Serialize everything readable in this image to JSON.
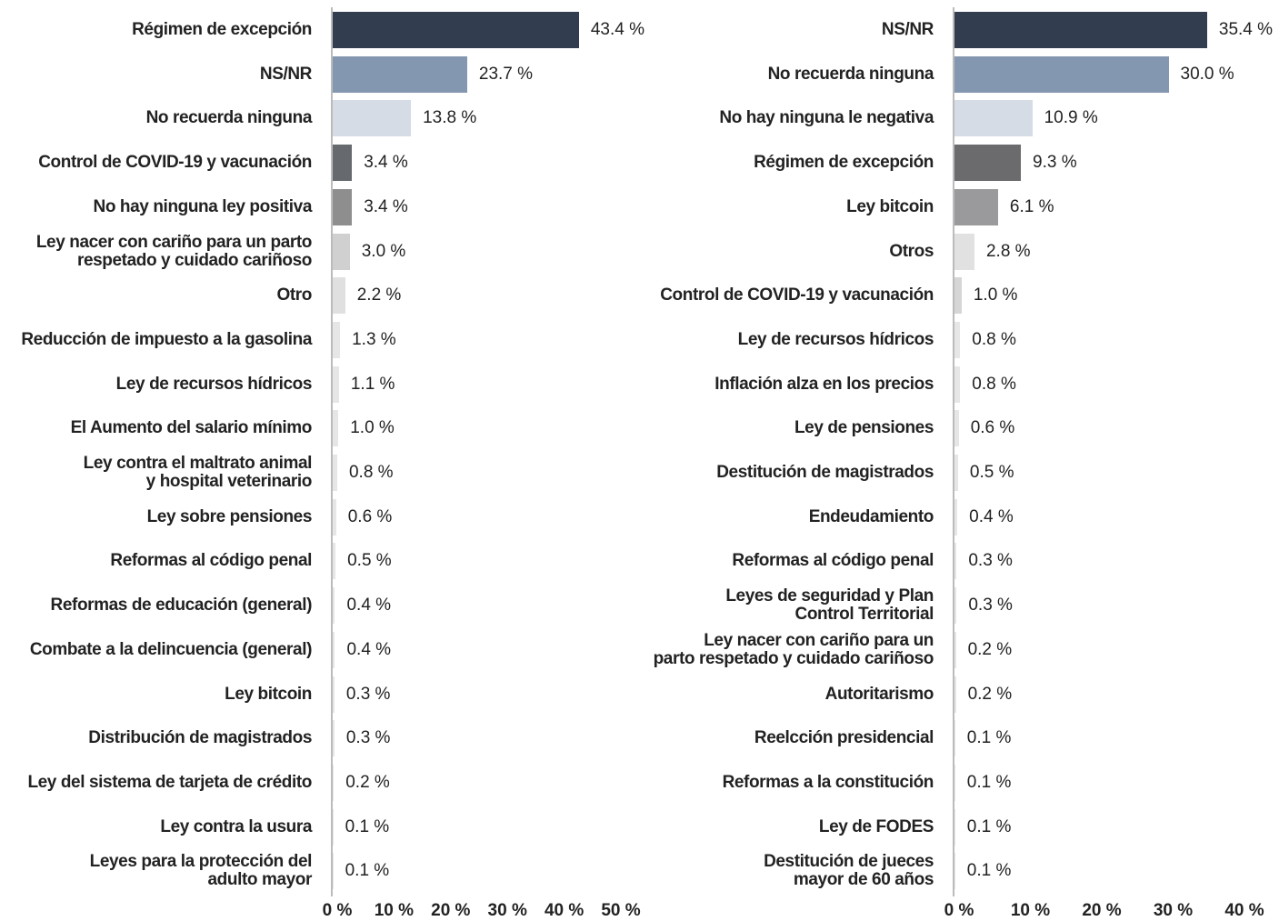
{
  "chart_data": [
    {
      "type": "bar",
      "orientation": "horizontal",
      "categories": [
        "Régimen de excepción",
        "NS/NR",
        "No recuerda ninguna",
        "Control de COVID-19 y vacunación",
        "No hay ninguna ley positiva",
        "Ley nacer con cariño para un parto\nrespetado y cuidado cariñoso",
        "Otro",
        "Reducción de impuesto a la gasolina",
        "Ley de recursos hídricos",
        "El Aumento del salario mínimo",
        "Ley contra el maltrato animal\ny hospital veterinario",
        "Ley sobre pensiones",
        "Reformas al código penal",
        "Reformas de educación (general)",
        "Combate a la delincuencia (general)",
        "Ley bitcoin",
        "Distribución de magistrados",
        "Ley del sistema de tarjeta de crédito",
        "Ley contra la usura",
        "Leyes para la protección del\nadulto mayor"
      ],
      "values": [
        43.4,
        23.7,
        13.8,
        3.4,
        3.4,
        3.0,
        2.2,
        1.3,
        1.1,
        1.0,
        0.8,
        0.6,
        0.5,
        0.4,
        0.4,
        0.3,
        0.3,
        0.2,
        0.1,
        0.1
      ],
      "value_labels": [
        "43.4 %",
        "23.7 %",
        "13.8 %",
        "3.4 %",
        "3.4 %",
        "3.0 %",
        "2.2 %",
        "1.3 %",
        "1.1 %",
        "1.0 %",
        "0.8 %",
        "0.6 %",
        "0.5 %",
        "0.4 %",
        "0.4 %",
        "0.3 %",
        "0.3 %",
        "0.2 %",
        "0.1 %",
        "0.1 %"
      ],
      "colors": [
        "#323d4f",
        "#8497b0",
        "#d6dce5",
        "#666a6e",
        "#8e8e8e",
        "#d0d0d0",
        "#e0e0e0",
        "#e6e6e6",
        "#e6e6e6",
        "#e6e6e6",
        "#e6e6e6",
        "#e6e6e6",
        "#e6e6e6",
        "#e6e6e6",
        "#e6e6e6",
        "#e6e6e6",
        "#e6e6e6",
        "#e6e6e6",
        "#e6e6e6",
        "#e6e6e6"
      ],
      "xlim": [
        0,
        50
      ],
      "xticks": [
        {
          "value": 0,
          "label": "0 %"
        },
        {
          "value": 10,
          "label": "10 %"
        },
        {
          "value": 20,
          "label": "20 %"
        },
        {
          "value": 30,
          "label": "30 %"
        },
        {
          "value": 40,
          "label": "40 %"
        },
        {
          "value": 50,
          "label": "50 %"
        }
      ]
    },
    {
      "type": "bar",
      "orientation": "horizontal",
      "categories": [
        "NS/NR",
        "No recuerda ninguna",
        "No hay ninguna le negativa",
        "Régimen de excepción",
        "Ley bitcoin",
        "Otros",
        "Control de COVID-19 y vacunación",
        "Ley de recursos hídricos",
        "Inflación alza en los precios",
        "Ley de pensiones",
        "Destitución de magistrados",
        "Endeudamiento",
        "Reformas al código penal",
        "Leyes de seguridad y Plan\nControl Territorial",
        "Ley nacer con cariño para un\nparto respetado y cuidado cariñoso",
        "Autoritarismo",
        "Reelcción presidencial",
        "Reformas a la constitución",
        "Ley de FODES",
        "Destitución de jueces\nmayor de 60 años"
      ],
      "values": [
        35.4,
        30.0,
        10.9,
        9.3,
        6.1,
        2.8,
        1.0,
        0.8,
        0.8,
        0.6,
        0.5,
        0.4,
        0.3,
        0.3,
        0.2,
        0.2,
        0.1,
        0.1,
        0.1,
        0.1
      ],
      "value_labels": [
        "35.4 %",
        "30.0 %",
        "10.9 %",
        "9.3 %",
        "6.1 %",
        "2.8 %",
        "1.0 %",
        "0.8 %",
        "0.8 %",
        "0.6 %",
        "0.5 %",
        "0.4 %",
        "0.3 %",
        "0.3 %",
        "0.2 %",
        "0.2 %",
        "0.1 %",
        "0.1 %",
        "0.1 %",
        "0.1 %"
      ],
      "colors": [
        "#323d4f",
        "#8497b0",
        "#d6dce5",
        "#6b6b6e",
        "#9a9a9c",
        "#e1e1e1",
        "#d6d6d6",
        "#e6e6e6",
        "#e6e6e6",
        "#e6e6e6",
        "#e6e6e6",
        "#e6e6e6",
        "#e6e6e6",
        "#e6e6e6",
        "#e6e6e6",
        "#e6e6e6",
        "#e6e6e6",
        "#e6e6e6",
        "#e6e6e6",
        "#e6e6e6"
      ],
      "xlim": [
        0,
        40
      ],
      "xticks": [
        {
          "value": 0,
          "label": "0 %"
        },
        {
          "value": 10,
          "label": "10 %"
        },
        {
          "value": 20,
          "label": "20 %"
        },
        {
          "value": 30,
          "label": "30 %"
        },
        {
          "value": 40,
          "label": "40 %"
        }
      ]
    }
  ]
}
